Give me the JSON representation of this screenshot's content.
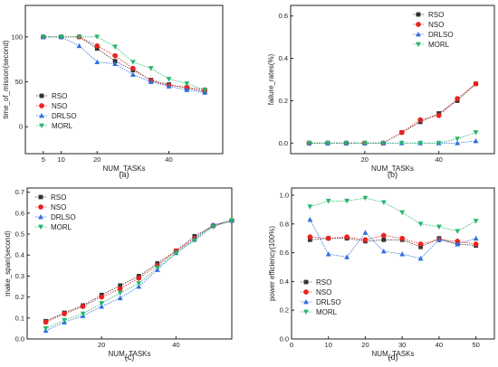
{
  "series_colors": [
    "#333333",
    "#e8231f",
    "#2f6fdf",
    "#26b56e"
  ],
  "series_markers": [
    "square",
    "circle",
    "triangle-up",
    "triangle-down"
  ],
  "chart_data": [
    {
      "type": "line",
      "panel": "(a)",
      "xlabel": "NUM_TASKs",
      "ylabel": "time_of_misson(second)",
      "xlim": [
        0,
        55
      ],
      "ylim": [
        -30,
        135
      ],
      "xticks": [
        5,
        10,
        20,
        40
      ],
      "yticks": [
        0,
        50,
        100
      ],
      "legend": "bottom-left",
      "x": [
        5,
        10,
        15,
        20,
        25,
        30,
        35,
        40,
        45,
        50
      ],
      "series": [
        {
          "name": "RSO",
          "values": [
            100,
            100,
            100,
            87,
            73,
            63,
            52,
            47,
            43,
            39
          ]
        },
        {
          "name": "NSO",
          "values": [
            100,
            100,
            100,
            90,
            79,
            65,
            51,
            46,
            44,
            41
          ]
        },
        {
          "name": "DRLSO",
          "values": [
            100,
            100,
            90,
            72,
            70,
            58,
            50,
            45,
            41,
            38
          ]
        },
        {
          "name": "MORL",
          "values": [
            100,
            100,
            100,
            100,
            89,
            72,
            65,
            53,
            48,
            41
          ]
        }
      ]
    },
    {
      "type": "line",
      "panel": "(b)",
      "xlabel": "NUM_TASKs",
      "ylabel": "failure_rates(%)",
      "xlim": [
        0,
        55
      ],
      "ylim": [
        -0.05,
        0.65
      ],
      "xticks": [
        20,
        40
      ],
      "yticks": [
        0.0,
        0.2,
        0.4,
        0.6
      ],
      "legend": "top-right",
      "x": [
        5,
        10,
        15,
        20,
        25,
        30,
        35,
        40,
        45,
        50
      ],
      "series": [
        {
          "name": "RSO",
          "values": [
            0.0,
            0.0,
            0.0,
            0.0,
            0.0,
            0.05,
            0.1,
            0.14,
            0.2,
            0.28
          ]
        },
        {
          "name": "NSO",
          "values": [
            0.0,
            0.0,
            0.0,
            0.0,
            0.0,
            0.05,
            0.11,
            0.13,
            0.21,
            0.28
          ]
        },
        {
          "name": "DRLSO",
          "values": [
            0.0,
            0.0,
            0.0,
            0.0,
            0.0,
            0.0,
            0.0,
            0.0,
            0.0,
            0.01
          ]
        },
        {
          "name": "MORL",
          "values": [
            0.0,
            0.0,
            0.0,
            0.0,
            0.0,
            0.0,
            0.0,
            0.0,
            0.02,
            0.05
          ]
        }
      ]
    },
    {
      "type": "line",
      "panel": "(c)",
      "xlabel": "NUM_TASKs",
      "ylabel": "make_span(second)",
      "xlim": [
        0,
        55
      ],
      "ylim": [
        0.0,
        0.72
      ],
      "xticks": [
        20,
        40
      ],
      "yticks": [
        0.0,
        0.1,
        0.2,
        0.3,
        0.4,
        0.5,
        0.6,
        0.7
      ],
      "legend": "top-left",
      "x": [
        5,
        10,
        15,
        20,
        25,
        30,
        35,
        40,
        45,
        50,
        55
      ],
      "series": [
        {
          "name": "RSO",
          "values": [
            0.085,
            0.125,
            0.16,
            0.21,
            0.255,
            0.3,
            0.36,
            0.42,
            0.49,
            0.54,
            0.565
          ]
        },
        {
          "name": "NSO",
          "values": [
            0.08,
            0.12,
            0.155,
            0.2,
            0.24,
            0.29,
            0.35,
            0.42,
            0.48,
            0.54,
            0.565
          ]
        },
        {
          "name": "DRLSO",
          "values": [
            0.04,
            0.08,
            0.11,
            0.155,
            0.195,
            0.25,
            0.33,
            0.41,
            0.475,
            0.545,
            0.565
          ]
        },
        {
          "name": "MORL",
          "values": [
            0.05,
            0.09,
            0.12,
            0.17,
            0.22,
            0.265,
            0.34,
            0.41,
            0.47,
            0.535,
            0.565
          ]
        }
      ]
    },
    {
      "type": "line",
      "panel": "(d)",
      "xlabel": "NUM_TASKs",
      "ylabel": "power efficiency(100%)",
      "xlim": [
        0,
        55
      ],
      "ylim": [
        0.0,
        1.05
      ],
      "xticks": [
        0,
        10,
        20,
        30,
        40,
        50
      ],
      "yticks": [
        0.0,
        0.2,
        0.4,
        0.6,
        0.8,
        1.0
      ],
      "legend": "bottom-left",
      "x": [
        5,
        10,
        15,
        20,
        25,
        30,
        35,
        40,
        45,
        50
      ],
      "series": [
        {
          "name": "RSO",
          "values": [
            0.69,
            0.7,
            0.7,
            0.68,
            0.69,
            0.69,
            0.64,
            0.7,
            0.66,
            0.65
          ]
        },
        {
          "name": "NSO",
          "values": [
            0.71,
            0.7,
            0.71,
            0.69,
            0.72,
            0.7,
            0.66,
            0.69,
            0.68,
            0.66
          ]
        },
        {
          "name": "DRLSO",
          "values": [
            0.83,
            0.59,
            0.57,
            0.74,
            0.61,
            0.59,
            0.56,
            0.69,
            0.66,
            0.7
          ]
        },
        {
          "name": "MORL",
          "values": [
            0.92,
            0.96,
            0.96,
            0.98,
            0.95,
            0.88,
            0.8,
            0.78,
            0.75,
            0.82
          ]
        }
      ]
    }
  ]
}
